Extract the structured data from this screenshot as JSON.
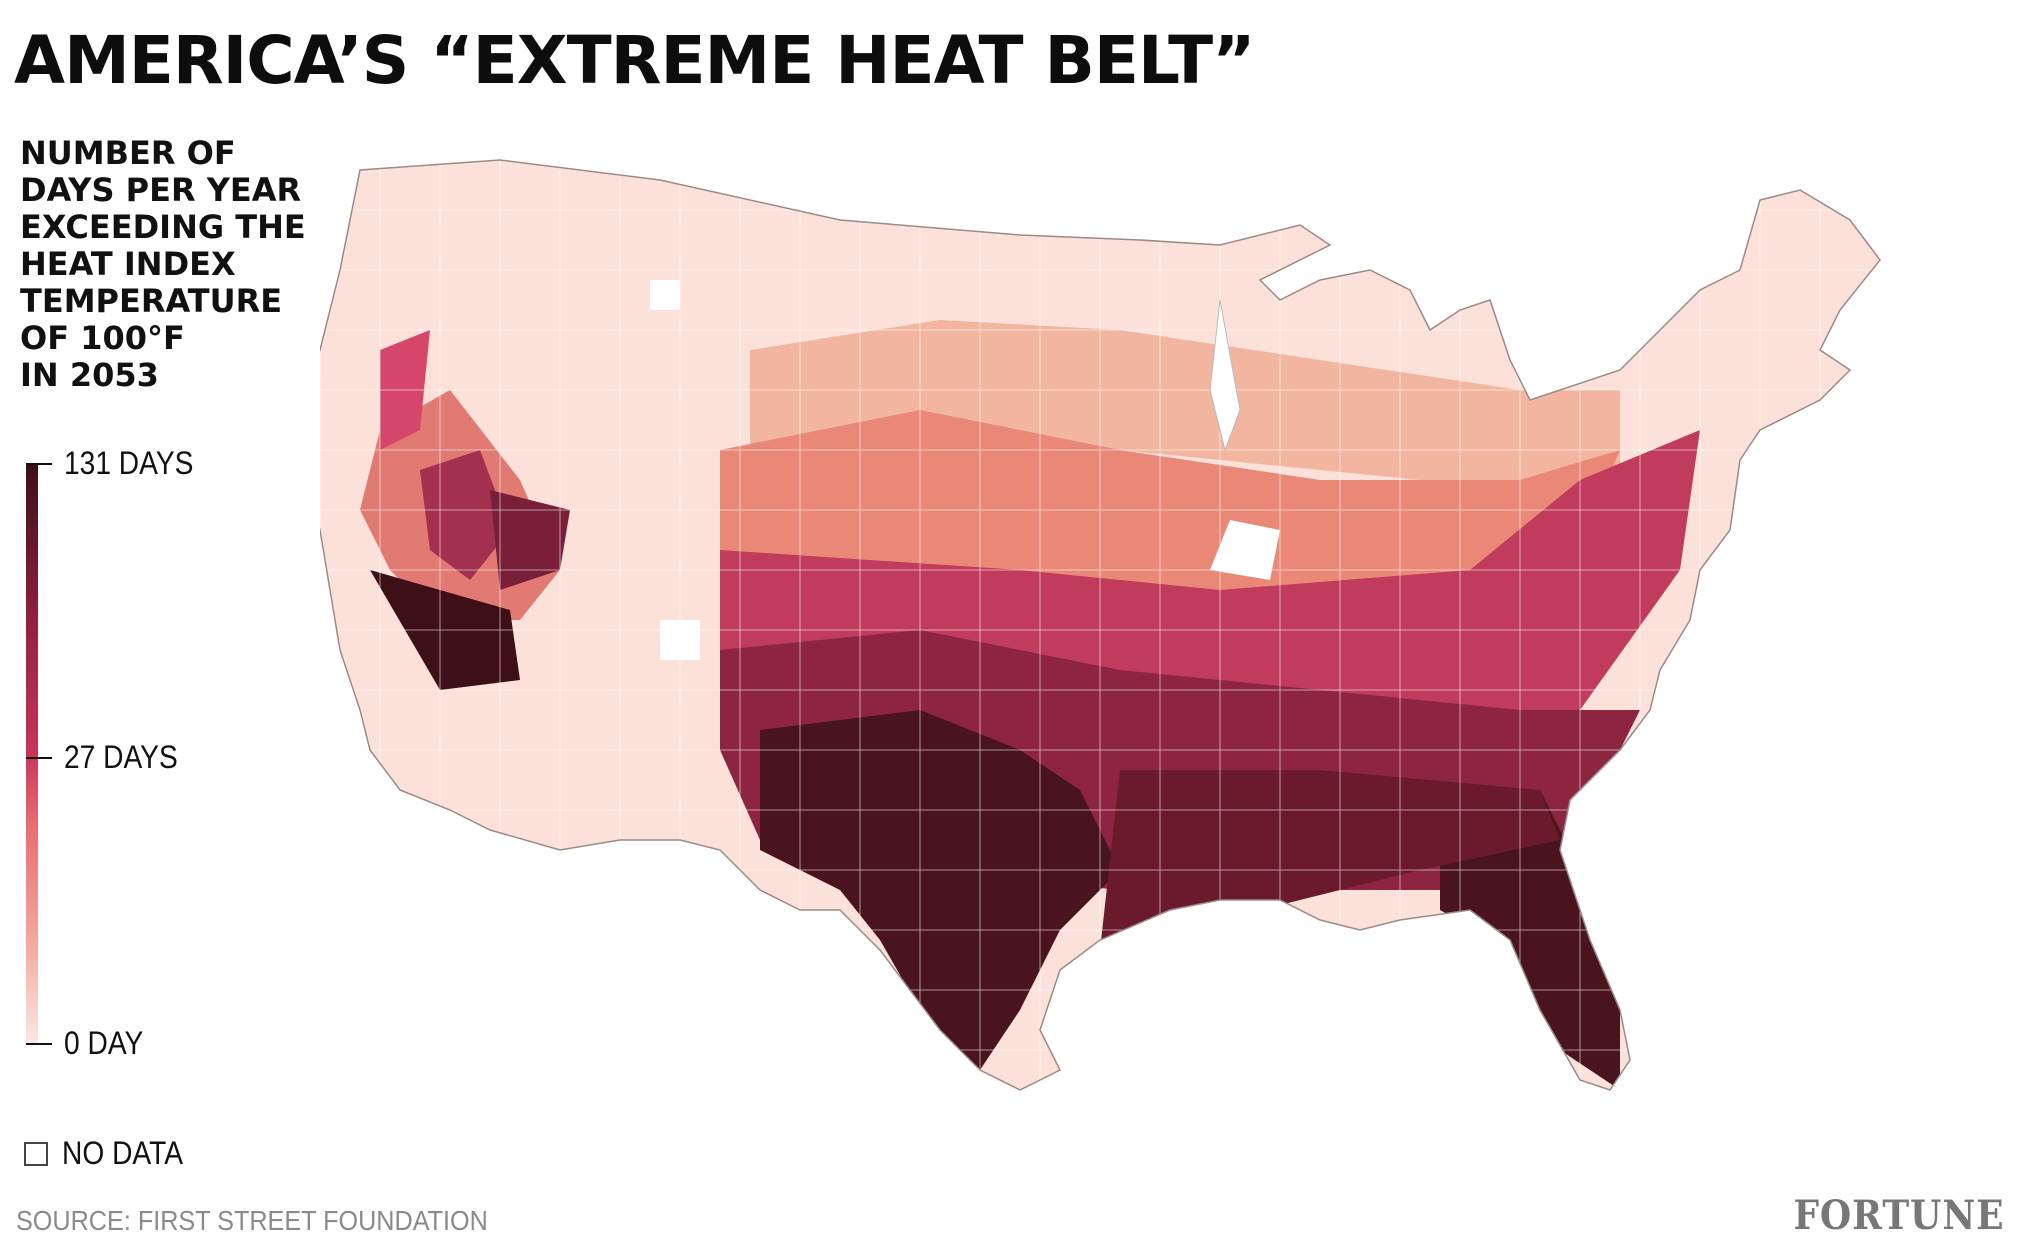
{
  "title": "AMERICA’S “EXTREME HEAT BELT”",
  "legend": {
    "title": "NUMBER OF\nDAYS PER YEAR\nEXCEEDING THE\nHEAT INDEX\nTEMPERATURE\nOF 100°F\nIN 2053",
    "max_label": "131 DAYS",
    "mid_label": "27 DAYS",
    "min_label": "0 DAY",
    "no_data_label": "NO DATA",
    "scale": [
      0,
      27,
      131
    ],
    "colors": [
      "#fbe7e3",
      "#f3a79b",
      "#e86b70",
      "#c8355a",
      "#8b1e3c",
      "#3d0f16"
    ]
  },
  "map": {
    "subject": "contiguous United States, county level",
    "boundary_color": "#ffffff"
  },
  "source": "SOURCE: FIRST STREET FOUNDATION",
  "brand": "FORTUNE"
}
